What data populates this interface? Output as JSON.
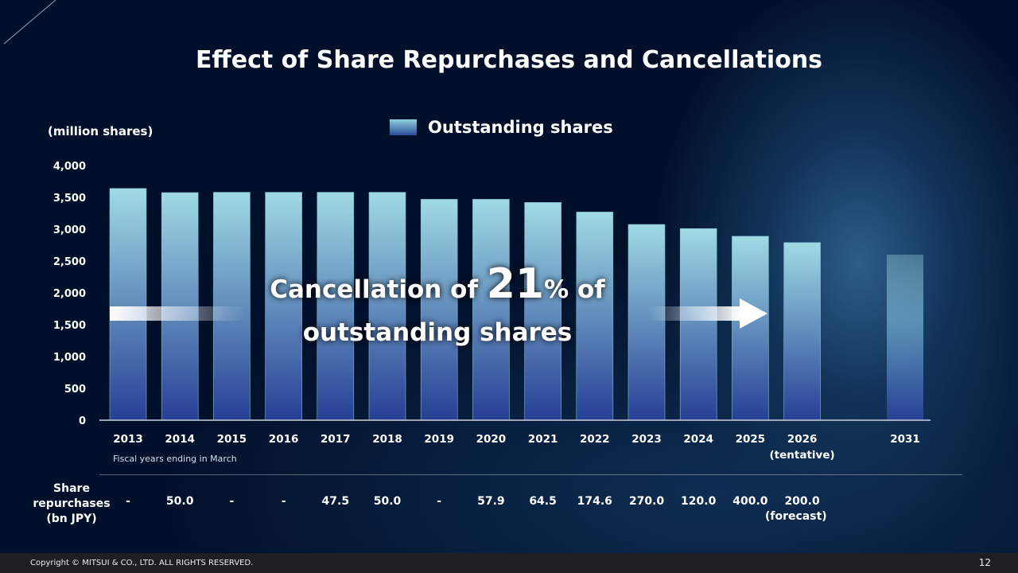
{
  "title": "Effect of Share Repurchases and Cancellations",
  "callout": {
    "prefix": "Cancellation of ",
    "number": "21",
    "percent": "%",
    "suffix": " of",
    "line2": "outstanding shares"
  },
  "chart_data": {
    "type": "bar",
    "title": "Effect of Share Repurchases and Cancellations",
    "ylabel": "(million shares)",
    "xlabel": "Fiscal years ending in March",
    "ylim": [
      0,
      4000
    ],
    "yticks": [
      "0",
      "500",
      "1,000",
      "1,500",
      "2,000",
      "2,500",
      "3,000",
      "3,500",
      "4,000"
    ],
    "categories": [
      "2013",
      "2014",
      "2015",
      "2016",
      "2017",
      "2018",
      "2019",
      "2020",
      "2021",
      "2022",
      "2023",
      "2024",
      "2025",
      "2026",
      "2031"
    ],
    "tentative_label": "(tentative)",
    "series": [
      {
        "name": "Outstanding shares",
        "values": [
          3640,
          3575,
          3580,
          3580,
          3580,
          3580,
          3470,
          3470,
          3420,
          3270,
          3075,
          3010,
          2890,
          2790,
          2600
        ]
      }
    ],
    "legend": "top-center",
    "grid": false,
    "colors": {
      "bar_top": "#9fdbe4",
      "bar_bottom": "#263f95"
    }
  },
  "repurchases": {
    "label": "Share repurchases (bn JPY)",
    "label_lines": [
      "Share",
      "repurchases",
      "(bn JPY)"
    ],
    "values": [
      "-",
      "50.0",
      "-",
      "-",
      "47.5",
      "50.0",
      "-",
      "57.9",
      "64.5",
      "174.6",
      "270.0",
      "120.0",
      "400.0",
      "200.0"
    ],
    "forecast_label": "(forecast)"
  },
  "footer": {
    "copyright": "Copyright © MITSUI & CO., LTD. ALL RIGHTS RESERVED.",
    "page": "12"
  }
}
